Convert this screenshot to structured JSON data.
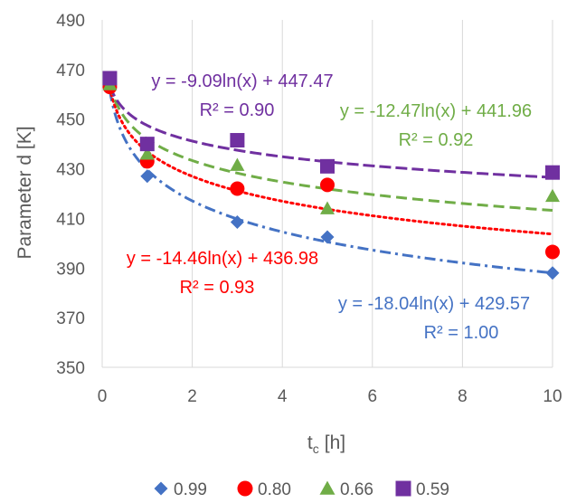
{
  "chart_data": {
    "type": "scatter",
    "xlabel": "t",
    "xlabel_sub": "c",
    "xlabel_unit": "[h]",
    "ylabel": "Parameter d [K]",
    "xlim": [
      0,
      10
    ],
    "ylim": [
      350,
      490
    ],
    "xticks": [
      "0",
      "2",
      "4",
      "6",
      "8",
      "10"
    ],
    "yticks": [
      "350",
      "370",
      "390",
      "410",
      "430",
      "450",
      "470",
      "490"
    ],
    "grid": "vertical",
    "legend_position": "bottom",
    "series": [
      {
        "name": "0.99",
        "marker": "diamond",
        "color": "#4472C4",
        "x": [
          0.17,
          1,
          3,
          5,
          10
        ],
        "y": [
          463,
          427,
          408.5,
          402.5,
          388
        ],
        "trendline": {
          "a": -18.04,
          "b": 429.57,
          "style": "dash-dot"
        },
        "equation": "y = -18.04ln(x) + 429.57",
        "r2": "R² = 1.00"
      },
      {
        "name": "0.80",
        "marker": "circle",
        "color": "#FF0000",
        "x": [
          0.17,
          1,
          3,
          5,
          10
        ],
        "y": [
          463,
          433,
          422,
          423.5,
          396.5
        ],
        "trendline": {
          "a": -14.46,
          "b": 436.98,
          "style": "dotted"
        },
        "equation": "y = -14.46ln(x) + 436.98",
        "r2": "R² = 0.93"
      },
      {
        "name": "0.66",
        "marker": "triangle",
        "color": "#70AD47",
        "x": [
          0.17,
          1,
          3,
          5,
          10
        ],
        "y": [
          464,
          436,
          431.5,
          414,
          419
        ],
        "trendline": {
          "a": -12.47,
          "b": 441.96,
          "style": "dashed"
        },
        "equation": "y = -12.47ln(x) + 441.96",
        "r2": "R² = 0.92"
      },
      {
        "name": "0.59",
        "marker": "square",
        "color": "#7030A0",
        "x": [
          0.17,
          1,
          3,
          5,
          10
        ],
        "y": [
          466.5,
          440,
          441.5,
          431,
          428.5
        ],
        "trendline": {
          "a": -9.09,
          "b": 447.47,
          "style": "long-dash"
        },
        "equation": "y = -9.09ln(x) + 447.47",
        "r2": "R² = 0.90"
      }
    ]
  }
}
